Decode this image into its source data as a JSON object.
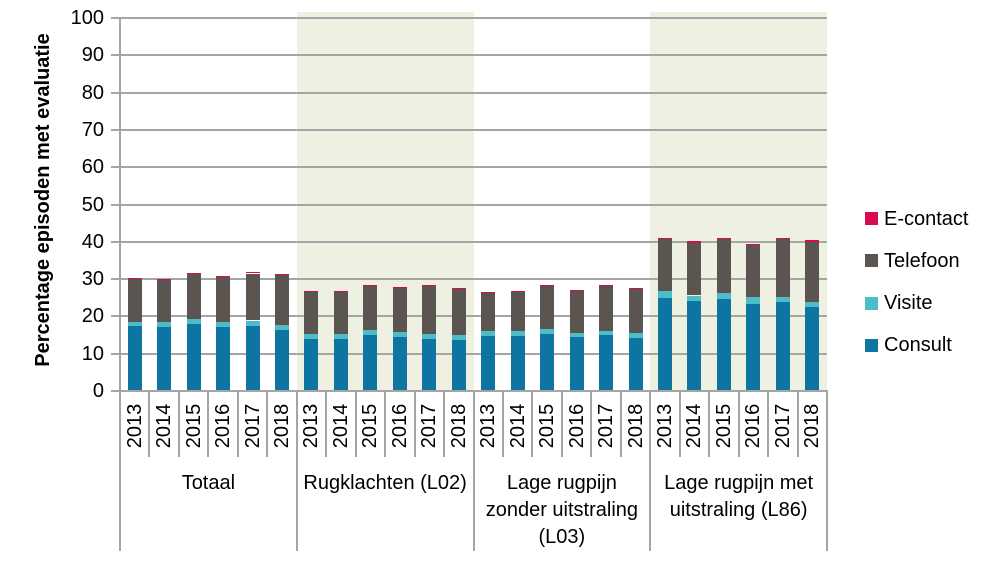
{
  "chart_data": {
    "type": "bar",
    "stacked": true,
    "title": "",
    "ylabel": "Percentage episoden met evaluatie",
    "xlabel": "",
    "ylim": [
      0,
      100
    ],
    "ytick_step": 10,
    "grid": "horizontal",
    "legend_position": "right",
    "years": [
      "2013",
      "2014",
      "2015",
      "2016",
      "2017",
      "2018"
    ],
    "stack_order": [
      "Consult",
      "Visite",
      "Telefoon",
      "E-contact"
    ],
    "legend": [
      {
        "label": "E-contact",
        "color": "#D90B4F"
      },
      {
        "label": "Telefoon",
        "color": "#5A5550"
      },
      {
        "label": "Visite",
        "color": "#4CBDC6"
      },
      {
        "label": "Consult",
        "color": "#0E74A1"
      }
    ],
    "colors": {
      "Consult": "#0E74A1",
      "Visite": "#4CBDC6",
      "Telefoon": "#5A5550",
      "E-contact": "#D90B4F"
    },
    "shading_color": "#EEF1E1",
    "gridline_color": "#A5A5A5",
    "groups": [
      {
        "label": "Totaal",
        "label_lines": [
          "Totaal"
        ],
        "shaded": false,
        "values": {
          "Consult": [
            17.3,
            17.1,
            18.0,
            17.1,
            17.5,
            16.4
          ],
          "Visite": [
            1.3,
            1.5,
            1.3,
            1.3,
            1.4,
            1.3
          ],
          "Telefoon": [
            11.4,
            11.3,
            12.0,
            12.2,
            12.6,
            13.4
          ],
          "E-contact": [
            0.3,
            0.2,
            0.4,
            0.3,
            0.4,
            0.3
          ]
        }
      },
      {
        "label": "Rugklachten (L02)",
        "label_lines": [
          "Rugklachten (L02)"
        ],
        "shaded": true,
        "values": {
          "Consult": [
            14.0,
            14.0,
            14.9,
            14.5,
            14.0,
            13.6
          ],
          "Visite": [
            1.4,
            1.3,
            1.5,
            1.3,
            1.2,
            1.4
          ],
          "Telefoon": [
            11.4,
            11.3,
            11.7,
            12.0,
            13.0,
            12.4
          ],
          "E-contact": [
            0.1,
            0.1,
            0.2,
            0.2,
            0.3,
            0.2
          ]
        }
      },
      {
        "label": "Lage rugpijn zonder uitstraling (L03)",
        "label_lines": [
          "Lage rugpijn",
          "zonder uitstraling",
          "(L03)"
        ],
        "shaded": false,
        "values": {
          "Consult": [
            14.7,
            14.8,
            15.2,
            14.6,
            15.1,
            14.3
          ],
          "Visite": [
            1.3,
            1.3,
            1.4,
            0.9,
            1.1,
            1.3
          ],
          "Telefoon": [
            10.4,
            10.7,
            11.6,
            11.6,
            12.1,
            11.8
          ],
          "E-contact": [
            0.1,
            0.1,
            0.2,
            0.1,
            0.2,
            0.2
          ]
        }
      },
      {
        "label": "Lage rugpijn met uitstraling (L86)",
        "label_lines": [
          "Lage rugpijn met",
          "uitstraling (L86)"
        ],
        "shaded": true,
        "values": {
          "Consult": [
            24.8,
            24.0,
            24.7,
            23.4,
            23.8,
            22.4
          ],
          "Visite": [
            2.1,
            1.6,
            1.7,
            1.7,
            1.5,
            1.5
          ],
          "Telefoon": [
            13.8,
            14.2,
            14.3,
            14.0,
            15.4,
            16.1
          ],
          "E-contact": [
            0.2,
            0.3,
            0.4,
            0.3,
            0.4,
            0.4
          ]
        }
      }
    ]
  }
}
